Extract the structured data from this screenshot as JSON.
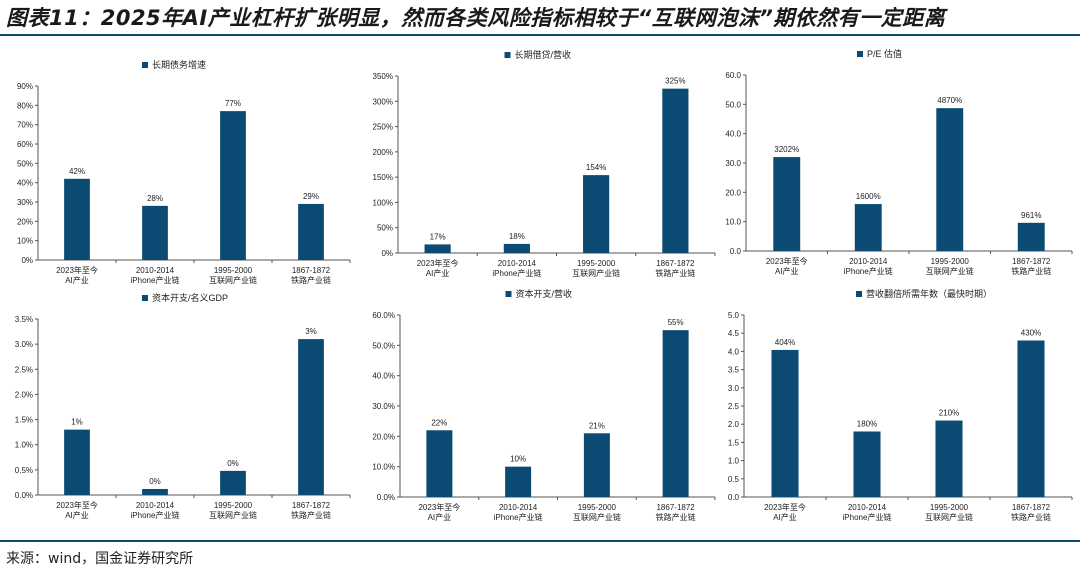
{
  "page": {
    "title": "图表11：2025年AI产业杠杆扩张明显，然而各类风险指标相较于“互联网泡沫”期依然有一定距离",
    "source": "来源：wind，国金证券研究所"
  },
  "colors": {
    "bar": "#0b4a72",
    "axis": "#555555",
    "text": "#222222",
    "rule": "#0a4a78"
  },
  "chart_data": [
    {
      "type": "bar",
      "legend": "长期债务增速",
      "categories": [
        [
          "2023年至今",
          "AI产业"
        ],
        [
          "2010-2014",
          "iPhone产业链"
        ],
        [
          "1995-2000",
          "互联网产业链"
        ],
        [
          "1867-1872",
          "铁路产业链"
        ]
      ],
      "values": [
        42,
        28,
        77,
        29
      ],
      "data_labels": [
        "42%",
        "28%",
        "77%",
        "29%"
      ],
      "ylim": [
        0,
        90
      ],
      "yticks": [
        0,
        10,
        20,
        30,
        40,
        50,
        60,
        70,
        80,
        90
      ],
      "ytick_labels": [
        "0%",
        "10%",
        "20%",
        "30%",
        "40%",
        "50%",
        "60%",
        "70%",
        "80%",
        "90%"
      ]
    },
    {
      "type": "bar",
      "legend": "长期借贷/营收",
      "categories": [
        [
          "2023年至今",
          "AI产业"
        ],
        [
          "2010-2014",
          "iPhone产业链"
        ],
        [
          "1995-2000",
          "互联网产业链"
        ],
        [
          "1867-1872",
          "铁路产业链"
        ]
      ],
      "values": [
        17,
        18,
        154,
        325
      ],
      "data_labels": [
        "17%",
        "18%",
        "154%",
        "325%"
      ],
      "ylim": [
        0,
        350
      ],
      "yticks": [
        0,
        50,
        100,
        150,
        200,
        250,
        300,
        350
      ],
      "ytick_labels": [
        "0%",
        "50%",
        "100%",
        "150%",
        "200%",
        "250%",
        "300%",
        "350%"
      ]
    },
    {
      "type": "bar",
      "legend": "P/E 估值",
      "categories": [
        [
          "2023年至今",
          "AI产业"
        ],
        [
          "2010-2014",
          "iPhone产业链"
        ],
        [
          "1995-2000",
          "互联网产业链"
        ],
        [
          "1867-1872",
          "铁路产业链"
        ]
      ],
      "values": [
        32.02,
        16.0,
        48.7,
        9.61
      ],
      "data_labels": [
        "3202%",
        "1600%",
        "4870%",
        "961%"
      ],
      "ylim": [
        0,
        60
      ],
      "yticks": [
        0,
        10,
        20,
        30,
        40,
        50,
        60
      ],
      "ytick_labels": [
        "0.0",
        "10.0",
        "20.0",
        "30.0",
        "40.0",
        "50.0",
        "60.0"
      ]
    },
    {
      "type": "bar",
      "legend": "资本开支/名义GDP",
      "categories": [
        [
          "2023年至今",
          "AI产业"
        ],
        [
          "2010-2014",
          "iPhone产业链"
        ],
        [
          "1995-2000",
          "互联网产业链"
        ],
        [
          "1867-1872",
          "铁路产业链"
        ]
      ],
      "values": [
        1.3,
        0.12,
        0.48,
        3.1
      ],
      "data_labels": [
        "1%",
        "0%",
        "0%",
        "3%"
      ],
      "ylim": [
        0,
        3.5
      ],
      "yticks": [
        0,
        0.5,
        1.0,
        1.5,
        2.0,
        2.5,
        3.0,
        3.5
      ],
      "ytick_labels": [
        "0.0%",
        "0.5%",
        "1.0%",
        "1.5%",
        "2.0%",
        "2.5%",
        "3.0%",
        "3.5%"
      ]
    },
    {
      "type": "bar",
      "legend": "资本开支/营收",
      "categories": [
        [
          "2023年至今",
          "AI产业"
        ],
        [
          "2010-2014",
          "iPhone产业链"
        ],
        [
          "1995-2000",
          "互联网产业链"
        ],
        [
          "1867-1872",
          "铁路产业链"
        ]
      ],
      "values": [
        22,
        10,
        21,
        55
      ],
      "data_labels": [
        "22%",
        "10%",
        "21%",
        "55%"
      ],
      "ylim": [
        0,
        60
      ],
      "yticks": [
        0,
        10,
        20,
        30,
        40,
        50,
        60
      ],
      "ytick_labels": [
        "0.0%",
        "10.0%",
        "20.0%",
        "30.0%",
        "40.0%",
        "50.0%",
        "60.0%"
      ]
    },
    {
      "type": "bar",
      "legend": "营收翻倍所需年数（最快时期）",
      "categories": [
        [
          "2023年至今",
          "AI产业"
        ],
        [
          "2010-2014",
          "iPhone产业链"
        ],
        [
          "1995-2000",
          "互联网产业链"
        ],
        [
          "1867-1872",
          "铁路产业链"
        ]
      ],
      "values": [
        4.04,
        1.8,
        2.1,
        4.3
      ],
      "data_labels": [
        "404%",
        "180%",
        "210%",
        "430%"
      ],
      "ylim": [
        0,
        5
      ],
      "yticks": [
        0,
        0.5,
        1.0,
        1.5,
        2.0,
        2.5,
        3.0,
        3.5,
        4.0,
        4.5,
        5.0
      ],
      "ytick_labels": [
        "0.0",
        "0.5",
        "1.0",
        "1.5",
        "2.0",
        "2.5",
        "3.0",
        "3.5",
        "4.0",
        "4.5",
        "5.0"
      ]
    }
  ]
}
